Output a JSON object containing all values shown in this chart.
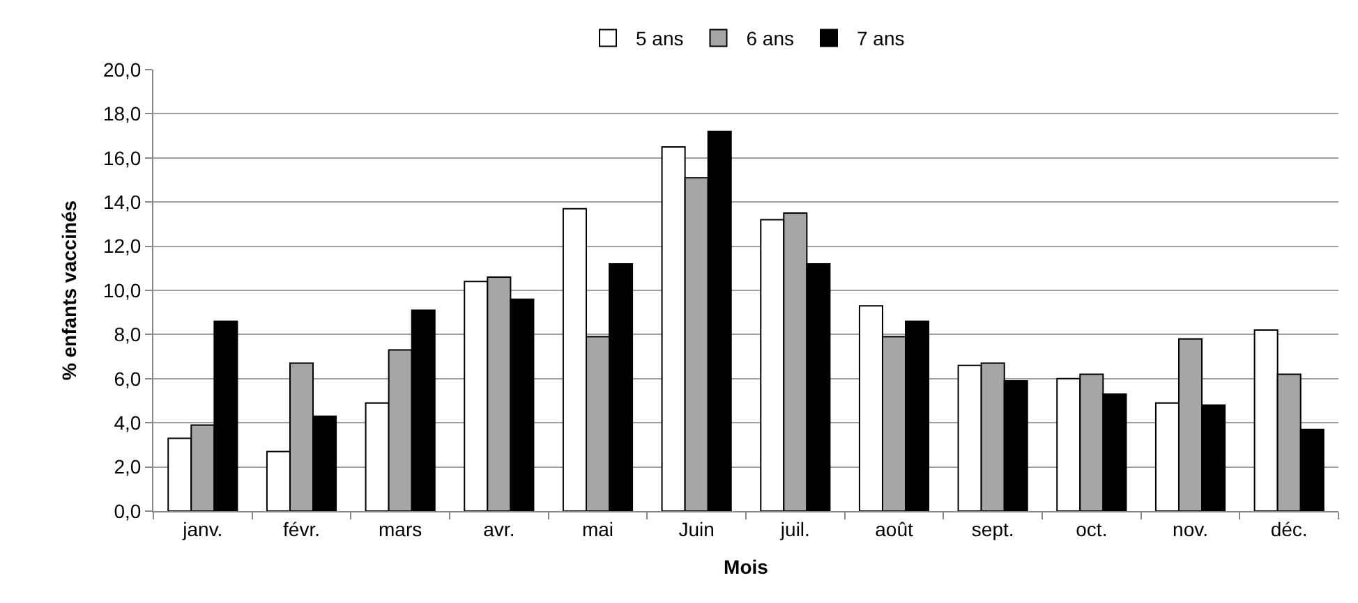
{
  "chart_data": {
    "type": "bar",
    "xlabel": "Mois",
    "ylabel": "% enfants vaccinés",
    "categories": [
      "janv.",
      "févr.",
      "mars",
      "avr.",
      "mai",
      "Juin",
      "juil.",
      "août",
      "sept.",
      "oct.",
      "nov.",
      "déc."
    ],
    "series": [
      {
        "name": "5 ans",
        "color": "#ffffff",
        "values": [
          3.3,
          2.7,
          4.9,
          10.4,
          13.7,
          16.5,
          13.2,
          9.3,
          6.6,
          6.0,
          4.9,
          8.2
        ]
      },
      {
        "name": "6 ans",
        "color": "#a6a6a6",
        "values": [
          3.9,
          6.7,
          7.3,
          10.6,
          7.9,
          15.1,
          13.5,
          7.9,
          6.7,
          6.2,
          7.8,
          6.2
        ]
      },
      {
        "name": "7 ans",
        "color": "#000000",
        "values": [
          8.6,
          4.3,
          9.1,
          9.6,
          11.2,
          17.2,
          11.2,
          8.6,
          5.9,
          5.3,
          4.8,
          3.7
        ]
      }
    ],
    "ylim": [
      0,
      20
    ],
    "yticks": [
      {
        "value": 0,
        "label": "0,0"
      },
      {
        "value": 2,
        "label": "2,0"
      },
      {
        "value": 4,
        "label": "4,0"
      },
      {
        "value": 6,
        "label": "6,0"
      },
      {
        "value": 8,
        "label": "8,0"
      },
      {
        "value": 10,
        "label": "10,0"
      },
      {
        "value": 12,
        "label": "12,0"
      },
      {
        "value": 14,
        "label": "14,0"
      },
      {
        "value": 16,
        "label": "16,0"
      },
      {
        "value": 18,
        "label": "18,0"
      },
      {
        "value": 20,
        "label": "20,0"
      }
    ],
    "grid": "y",
    "legend": "top"
  }
}
